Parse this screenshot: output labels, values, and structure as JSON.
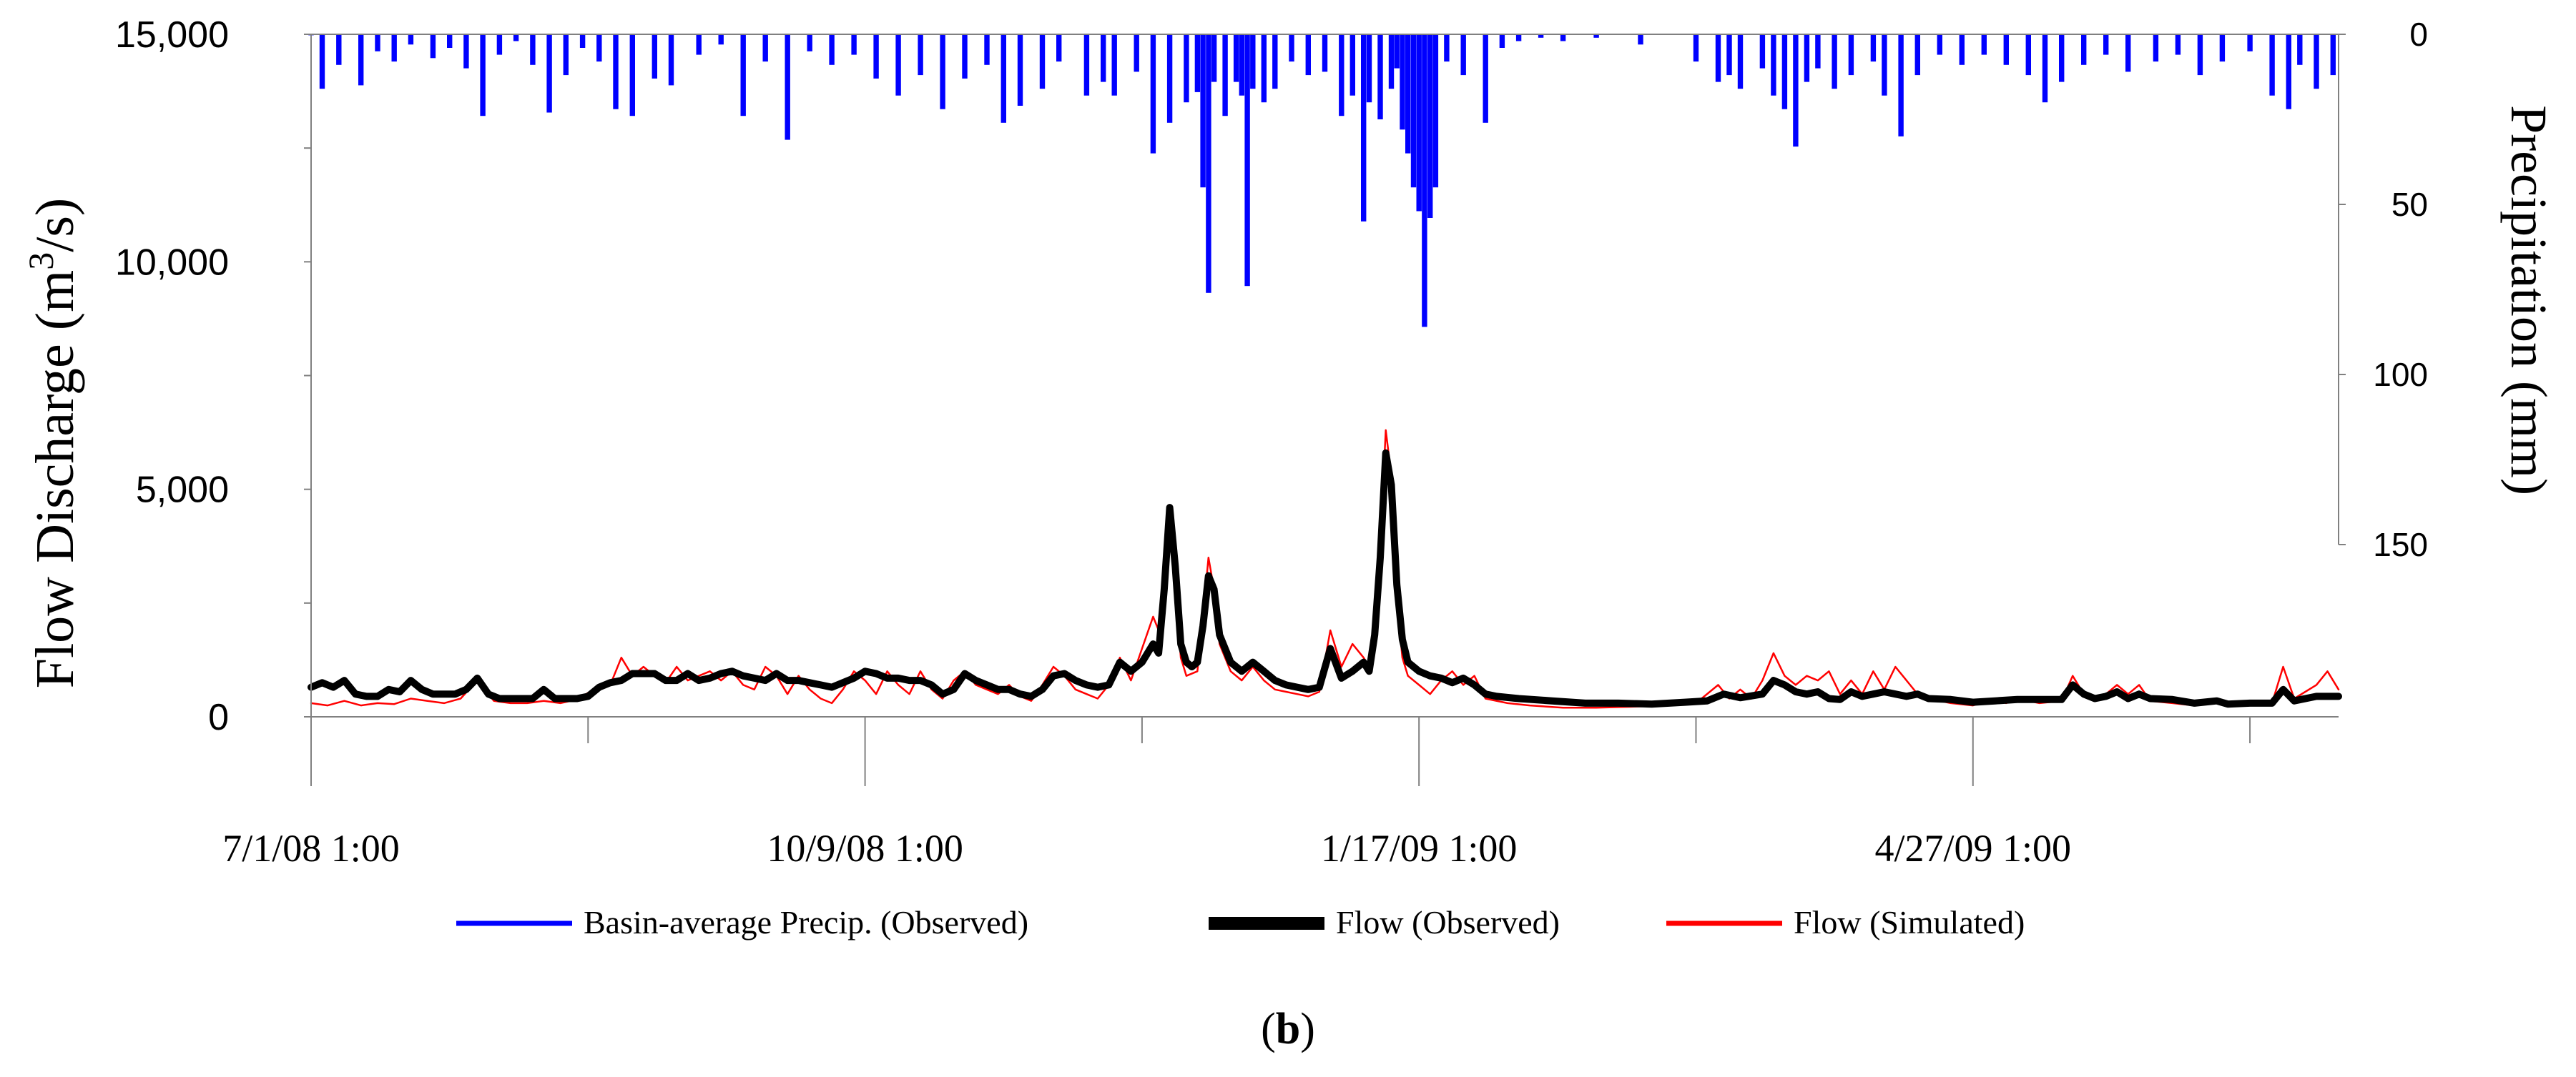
{
  "chart_data": {
    "type": "bar+line",
    "panel_label": "(b)",
    "x_axis": {
      "ticks": [
        "7/1/08 1:00",
        "10/9/08 1:00",
        "1/17/09 1:00",
        "4/27/09 1:00"
      ],
      "range_days": [
        0,
        366
      ]
    },
    "y_left": {
      "label_main": "Flow Discharge (m",
      "label_sup": "3",
      "label_tail": "/s)",
      "ticks": [
        "0",
        "5,000",
        "10,000",
        "15,000"
      ],
      "ylim": [
        0,
        15000
      ]
    },
    "y_right": {
      "label": "Precipitation (mm)",
      "ticks": [
        "0",
        "50",
        "100",
        "150"
      ],
      "ylim": [
        0,
        150
      ],
      "inverted": true
    },
    "legend": [
      {
        "name": "Basin-average Precip. (Observed)",
        "color": "#0000ff"
      },
      {
        "name": "Flow (Observed)",
        "color": "#000000"
      },
      {
        "name": "Flow (Simulated)",
        "color": "#ff0000"
      }
    ],
    "precip_keypoints": [
      [
        0,
        0.3
      ],
      [
        2,
        16
      ],
      [
        5,
        9
      ],
      [
        9,
        15
      ],
      [
        12,
        5
      ],
      [
        15,
        8
      ],
      [
        18,
        3
      ],
      [
        22,
        7
      ],
      [
        25,
        4
      ],
      [
        28,
        10
      ],
      [
        31,
        24
      ],
      [
        34,
        6
      ],
      [
        37,
        2
      ],
      [
        40,
        9
      ],
      [
        43,
        23
      ],
      [
        46,
        12
      ],
      [
        49,
        4
      ],
      [
        52,
        8
      ],
      [
        55,
        22
      ],
      [
        58,
        24
      ],
      [
        62,
        13
      ],
      [
        65,
        15
      ],
      [
        70,
        6
      ],
      [
        74,
        3
      ],
      [
        78,
        24
      ],
      [
        82,
        8
      ],
      [
        86,
        31
      ],
      [
        90,
        5
      ],
      [
        94,
        9
      ],
      [
        98,
        6
      ],
      [
        102,
        13
      ],
      [
        106,
        18
      ],
      [
        110,
        12
      ],
      [
        114,
        22
      ],
      [
        118,
        13
      ],
      [
        122,
        9
      ],
      [
        125,
        26
      ],
      [
        128,
        21
      ],
      [
        132,
        16
      ],
      [
        135,
        8
      ],
      [
        140,
        18
      ],
      [
        143,
        14
      ],
      [
        145,
        18
      ],
      [
        149,
        11
      ],
      [
        152,
        35
      ],
      [
        155,
        26
      ],
      [
        158,
        20
      ],
      [
        160,
        17
      ],
      [
        161,
        45
      ],
      [
        162,
        76
      ],
      [
        163,
        14
      ],
      [
        165,
        24
      ],
      [
        167,
        14
      ],
      [
        168,
        18
      ],
      [
        169,
        74
      ],
      [
        170,
        16
      ],
      [
        172,
        20
      ],
      [
        174,
        16
      ],
      [
        177,
        8
      ],
      [
        180,
        12
      ],
      [
        183,
        11
      ],
      [
        186,
        24
      ],
      [
        188,
        18
      ],
      [
        190,
        55
      ],
      [
        191,
        20
      ],
      [
        193,
        25
      ],
      [
        195,
        16
      ],
      [
        196,
        10
      ],
      [
        197,
        28
      ],
      [
        198,
        35
      ],
      [
        199,
        45
      ],
      [
        200,
        52
      ],
      [
        201,
        86
      ],
      [
        202,
        54
      ],
      [
        203,
        45
      ],
      [
        205,
        8
      ],
      [
        208,
        12
      ],
      [
        212,
        26
      ],
      [
        215,
        4
      ],
      [
        218,
        2
      ],
      [
        222,
        1
      ],
      [
        226,
        2
      ],
      [
        232,
        1
      ],
      [
        240,
        3
      ],
      [
        250,
        8
      ],
      [
        254,
        14
      ],
      [
        256,
        12
      ],
      [
        258,
        16
      ],
      [
        262,
        10
      ],
      [
        264,
        18
      ],
      [
        266,
        22
      ],
      [
        268,
        33
      ],
      [
        270,
        14
      ],
      [
        272,
        10
      ],
      [
        275,
        16
      ],
      [
        278,
        12
      ],
      [
        282,
        8
      ],
      [
        284,
        18
      ],
      [
        287,
        30
      ],
      [
        290,
        12
      ],
      [
        294,
        6
      ],
      [
        298,
        9
      ],
      [
        302,
        6
      ],
      [
        306,
        9
      ],
      [
        310,
        12
      ],
      [
        313,
        20
      ],
      [
        316,
        14
      ],
      [
        320,
        9
      ],
      [
        324,
        6
      ],
      [
        328,
        11
      ],
      [
        333,
        8
      ],
      [
        337,
        6
      ],
      [
        341,
        12
      ],
      [
        345,
        8
      ],
      [
        350,
        5
      ],
      [
        354,
        18
      ],
      [
        357,
        22
      ],
      [
        359,
        9
      ],
      [
        362,
        16
      ],
      [
        365,
        12
      ]
    ],
    "flow_observed": [
      [
        0,
        650
      ],
      [
        2,
        750
      ],
      [
        4,
        650
      ],
      [
        6,
        800
      ],
      [
        8,
        500
      ],
      [
        10,
        450
      ],
      [
        12,
        450
      ],
      [
        14,
        600
      ],
      [
        16,
        550
      ],
      [
        18,
        800
      ],
      [
        20,
        600
      ],
      [
        22,
        500
      ],
      [
        24,
        500
      ],
      [
        26,
        500
      ],
      [
        28,
        600
      ],
      [
        30,
        850
      ],
      [
        32,
        500
      ],
      [
        34,
        400
      ],
      [
        36,
        400
      ],
      [
        38,
        400
      ],
      [
        40,
        400
      ],
      [
        42,
        600
      ],
      [
        44,
        400
      ],
      [
        46,
        400
      ],
      [
        48,
        400
      ],
      [
        50,
        450
      ],
      [
        52,
        650
      ],
      [
        54,
        750
      ],
      [
        56,
        800
      ],
      [
        58,
        950
      ],
      [
        60,
        950
      ],
      [
        62,
        950
      ],
      [
        64,
        800
      ],
      [
        66,
        800
      ],
      [
        68,
        950
      ],
      [
        70,
        800
      ],
      [
        72,
        850
      ],
      [
        74,
        950
      ],
      [
        76,
        1000
      ],
      [
        78,
        900
      ],
      [
        80,
        850
      ],
      [
        82,
        800
      ],
      [
        84,
        950
      ],
      [
        86,
        800
      ],
      [
        88,
        800
      ],
      [
        90,
        750
      ],
      [
        92,
        700
      ],
      [
        94,
        650
      ],
      [
        96,
        750
      ],
      [
        98,
        850
      ],
      [
        100,
        1000
      ],
      [
        102,
        950
      ],
      [
        104,
        850
      ],
      [
        106,
        850
      ],
      [
        108,
        800
      ],
      [
        110,
        800
      ],
      [
        112,
        700
      ],
      [
        114,
        500
      ],
      [
        116,
        600
      ],
      [
        118,
        950
      ],
      [
        120,
        800
      ],
      [
        122,
        700
      ],
      [
        124,
        600
      ],
      [
        126,
        600
      ],
      [
        128,
        500
      ],
      [
        130,
        450
      ],
      [
        132,
        600
      ],
      [
        134,
        900
      ],
      [
        136,
        950
      ],
      [
        138,
        800
      ],
      [
        140,
        700
      ],
      [
        142,
        650
      ],
      [
        144,
        700
      ],
      [
        146,
        1200
      ],
      [
        148,
        1000
      ],
      [
        150,
        1200
      ],
      [
        152,
        1600
      ],
      [
        153,
        1400
      ],
      [
        154,
        2800
      ],
      [
        155,
        4600
      ],
      [
        156,
        3300
      ],
      [
        157,
        1600
      ],
      [
        158,
        1200
      ],
      [
        159,
        1100
      ],
      [
        160,
        1200
      ],
      [
        161,
        2000
      ],
      [
        162,
        3100
      ],
      [
        163,
        2800
      ],
      [
        164,
        1800
      ],
      [
        166,
        1200
      ],
      [
        168,
        1000
      ],
      [
        170,
        1200
      ],
      [
        172,
        1000
      ],
      [
        174,
        800
      ],
      [
        176,
        700
      ],
      [
        178,
        650
      ],
      [
        180,
        600
      ],
      [
        182,
        650
      ],
      [
        184,
        1500
      ],
      [
        186,
        850
      ],
      [
        188,
        1000
      ],
      [
        190,
        1200
      ],
      [
        191,
        1000
      ],
      [
        192,
        1800
      ],
      [
        193,
        3500
      ],
      [
        194,
        5800
      ],
      [
        195,
        5100
      ],
      [
        196,
        2900
      ],
      [
        197,
        1700
      ],
      [
        198,
        1200
      ],
      [
        200,
        1000
      ],
      [
        202,
        900
      ],
      [
        204,
        850
      ],
      [
        206,
        750
      ],
      [
        208,
        850
      ],
      [
        210,
        700
      ],
      [
        212,
        500
      ],
      [
        214,
        450
      ],
      [
        218,
        400
      ],
      [
        224,
        350
      ],
      [
        230,
        300
      ],
      [
        236,
        300
      ],
      [
        242,
        280
      ],
      [
        248,
        320
      ],
      [
        252,
        350
      ],
      [
        255,
        500
      ],
      [
        258,
        420
      ],
      [
        262,
        500
      ],
      [
        264,
        800
      ],
      [
        266,
        700
      ],
      [
        268,
        550
      ],
      [
        270,
        500
      ],
      [
        272,
        550
      ],
      [
        274,
        400
      ],
      [
        276,
        380
      ],
      [
        278,
        550
      ],
      [
        280,
        450
      ],
      [
        282,
        500
      ],
      [
        284,
        550
      ],
      [
        286,
        500
      ],
      [
        288,
        450
      ],
      [
        290,
        500
      ],
      [
        292,
        400
      ],
      [
        296,
        380
      ],
      [
        300,
        320
      ],
      [
        304,
        350
      ],
      [
        308,
        380
      ],
      [
        312,
        380
      ],
      [
        316,
        380
      ],
      [
        318,
        700
      ],
      [
        320,
        500
      ],
      [
        322,
        400
      ],
      [
        324,
        450
      ],
      [
        326,
        550
      ],
      [
        328,
        400
      ],
      [
        330,
        500
      ],
      [
        332,
        400
      ],
      [
        336,
        380
      ],
      [
        340,
        300
      ],
      [
        344,
        350
      ],
      [
        346,
        280
      ],
      [
        350,
        300
      ],
      [
        354,
        300
      ],
      [
        356,
        600
      ],
      [
        358,
        350
      ],
      [
        362,
        450
      ],
      [
        366,
        450
      ]
    ],
    "flow_simulated": [
      [
        0,
        300
      ],
      [
        3,
        250
      ],
      [
        6,
        350
      ],
      [
        9,
        250
      ],
      [
        12,
        300
      ],
      [
        15,
        280
      ],
      [
        18,
        400
      ],
      [
        21,
        350
      ],
      [
        24,
        300
      ],
      [
        27,
        400
      ],
      [
        30,
        800
      ],
      [
        33,
        350
      ],
      [
        36,
        300
      ],
      [
        39,
        300
      ],
      [
        42,
        350
      ],
      [
        45,
        300
      ],
      [
        48,
        380
      ],
      [
        51,
        600
      ],
      [
        54,
        700
      ],
      [
        56,
        1300
      ],
      [
        58,
        900
      ],
      [
        60,
        1100
      ],
      [
        62,
        900
      ],
      [
        64,
        750
      ],
      [
        66,
        1100
      ],
      [
        68,
        800
      ],
      [
        70,
        900
      ],
      [
        72,
        1000
      ],
      [
        74,
        800
      ],
      [
        76,
        1000
      ],
      [
        78,
        700
      ],
      [
        80,
        600
      ],
      [
        82,
        1100
      ],
      [
        84,
        900
      ],
      [
        86,
        500
      ],
      [
        88,
        900
      ],
      [
        90,
        600
      ],
      [
        92,
        400
      ],
      [
        94,
        300
      ],
      [
        96,
        600
      ],
      [
        98,
        1000
      ],
      [
        100,
        800
      ],
      [
        102,
        500
      ],
      [
        104,
        1000
      ],
      [
        106,
        700
      ],
      [
        108,
        500
      ],
      [
        110,
        1000
      ],
      [
        112,
        600
      ],
      [
        114,
        400
      ],
      [
        116,
        800
      ],
      [
        118,
        1000
      ],
      [
        120,
        700
      ],
      [
        122,
        600
      ],
      [
        124,
        500
      ],
      [
        126,
        700
      ],
      [
        128,
        450
      ],
      [
        130,
        350
      ],
      [
        132,
        700
      ],
      [
        134,
        1100
      ],
      [
        136,
        900
      ],
      [
        138,
        600
      ],
      [
        140,
        500
      ],
      [
        142,
        400
      ],
      [
        144,
        700
      ],
      [
        146,
        1300
      ],
      [
        148,
        800
      ],
      [
        150,
        1500
      ],
      [
        152,
        2200
      ],
      [
        153,
        1900
      ],
      [
        154,
        3200
      ],
      [
        155,
        4300
      ],
      [
        156,
        2800
      ],
      [
        157,
        1300
      ],
      [
        158,
        900
      ],
      [
        160,
        1000
      ],
      [
        161,
        2200
      ],
      [
        162,
        3500
      ],
      [
        163,
        2800
      ],
      [
        164,
        1600
      ],
      [
        166,
        1000
      ],
      [
        168,
        800
      ],
      [
        170,
        1100
      ],
      [
        172,
        800
      ],
      [
        174,
        600
      ],
      [
        176,
        550
      ],
      [
        178,
        500
      ],
      [
        180,
        450
      ],
      [
        182,
        550
      ],
      [
        184,
        1900
      ],
      [
        186,
        1100
      ],
      [
        188,
        1600
      ],
      [
        190,
        1300
      ],
      [
        191,
        1100
      ],
      [
        192,
        2000
      ],
      [
        193,
        3800
      ],
      [
        194,
        6300
      ],
      [
        195,
        5300
      ],
      [
        196,
        2600
      ],
      [
        197,
        1300
      ],
      [
        198,
        900
      ],
      [
        200,
        700
      ],
      [
        202,
        500
      ],
      [
        204,
        800
      ],
      [
        206,
        1000
      ],
      [
        208,
        700
      ],
      [
        210,
        900
      ],
      [
        212,
        400
      ],
      [
        216,
        300
      ],
      [
        220,
        250
      ],
      [
        226,
        200
      ],
      [
        232,
        200
      ],
      [
        238,
        220
      ],
      [
        244,
        250
      ],
      [
        250,
        300
      ],
      [
        254,
        700
      ],
      [
        256,
        400
      ],
      [
        258,
        600
      ],
      [
        260,
        400
      ],
      [
        262,
        800
      ],
      [
        264,
        1400
      ],
      [
        266,
        900
      ],
      [
        268,
        700
      ],
      [
        270,
        900
      ],
      [
        272,
        800
      ],
      [
        274,
        1000
      ],
      [
        276,
        500
      ],
      [
        278,
        800
      ],
      [
        280,
        500
      ],
      [
        282,
        1000
      ],
      [
        284,
        600
      ],
      [
        286,
        1100
      ],
      [
        288,
        800
      ],
      [
        290,
        500
      ],
      [
        292,
        400
      ],
      [
        296,
        300
      ],
      [
        300,
        250
      ],
      [
        304,
        380
      ],
      [
        306,
        300
      ],
      [
        308,
        400
      ],
      [
        312,
        300
      ],
      [
        316,
        350
      ],
      [
        318,
        900
      ],
      [
        320,
        500
      ],
      [
        322,
        350
      ],
      [
        324,
        500
      ],
      [
        326,
        700
      ],
      [
        328,
        500
      ],
      [
        330,
        700
      ],
      [
        332,
        350
      ],
      [
        336,
        300
      ],
      [
        340,
        250
      ],
      [
        344,
        300
      ],
      [
        346,
        250
      ],
      [
        350,
        280
      ],
      [
        354,
        300
      ],
      [
        356,
        1100
      ],
      [
        358,
        400
      ],
      [
        362,
        700
      ],
      [
        364,
        1000
      ],
      [
        366,
        600
      ]
    ]
  }
}
